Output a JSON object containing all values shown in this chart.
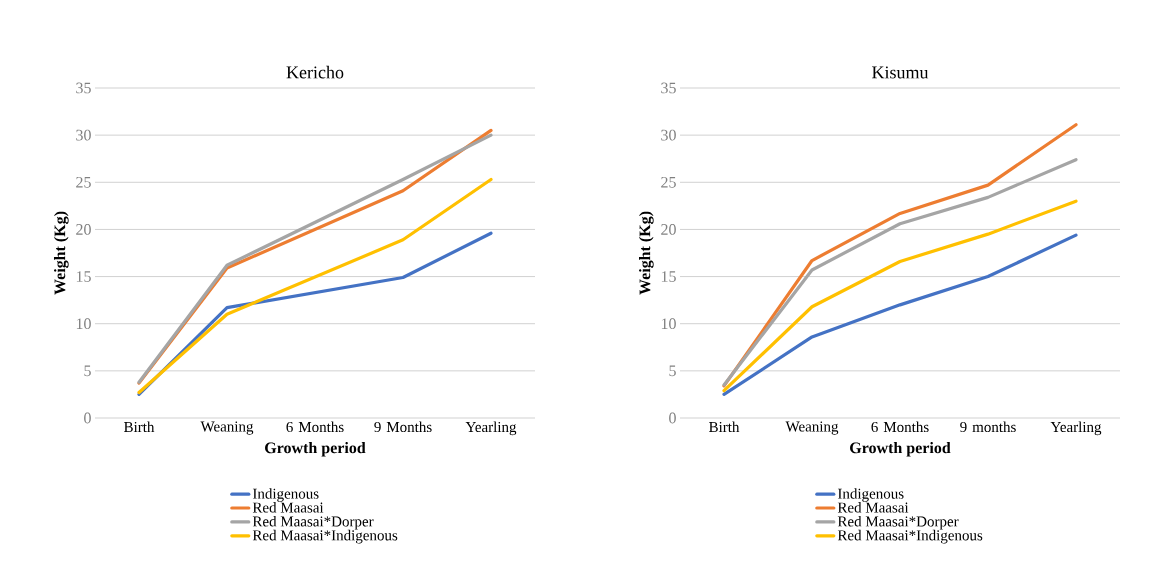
{
  "chart_data": [
    {
      "type": "line",
      "title": "Kericho",
      "xlabel": "Growth period",
      "ylabel": "Weight (Kg)",
      "categories": [
        "Birth",
        "Weaning",
        "6 Months",
        "9 Months",
        "Yearling"
      ],
      "ylim": [
        0,
        35
      ],
      "yticks": [
        0,
        5,
        10,
        15,
        20,
        25,
        30,
        35
      ],
      "grid": "y",
      "legend": "bottom",
      "marker": "none",
      "series": [
        {
          "name": "Indigenous",
          "color": "#4472c4",
          "values": [
            2.5,
            11.7,
            null,
            14.9,
            19.6
          ]
        },
        {
          "name": "Red Maasai",
          "color": "#ed7d31",
          "values": [
            3.7,
            15.9,
            null,
            24.1,
            30.5
          ]
        },
        {
          "name": "Red Maasai*Dorper",
          "color": "#a5a5a5",
          "values": [
            3.8,
            16.2,
            null,
            25.3,
            30.0
          ]
        },
        {
          "name": "Red Maasai*Indigenous",
          "color": "#ffc000",
          "values": [
            2.7,
            11.0,
            null,
            18.9,
            25.3
          ]
        }
      ]
    },
    {
      "type": "line",
      "title": "Kisumu",
      "xlabel": "Growth period",
      "ylabel": "Weight (Kg)",
      "categories": [
        "Birth",
        "Weaning",
        "6 Months",
        "9 months",
        "Yearling"
      ],
      "ylim": [
        0,
        35
      ],
      "yticks": [
        0,
        5,
        10,
        15,
        20,
        25,
        30,
        35
      ],
      "grid": "y",
      "legend": "bottom",
      "marker": "none",
      "series": [
        {
          "name": "Indigenous",
          "color": "#4472c4",
          "values": [
            2.5,
            8.6,
            12.0,
            15.0,
            19.4
          ]
        },
        {
          "name": "Red Maasai",
          "color": "#ed7d31",
          "values": [
            3.4,
            16.7,
            21.7,
            24.7,
            31.1
          ]
        },
        {
          "name": "Red Maasai*Dorper",
          "color": "#a5a5a5",
          "values": [
            3.5,
            15.7,
            20.6,
            23.4,
            27.4
          ]
        },
        {
          "name": "Red Maasai*Indigenous",
          "color": "#ffc000",
          "values": [
            2.9,
            11.8,
            16.6,
            19.5,
            23.0
          ]
        }
      ]
    }
  ]
}
